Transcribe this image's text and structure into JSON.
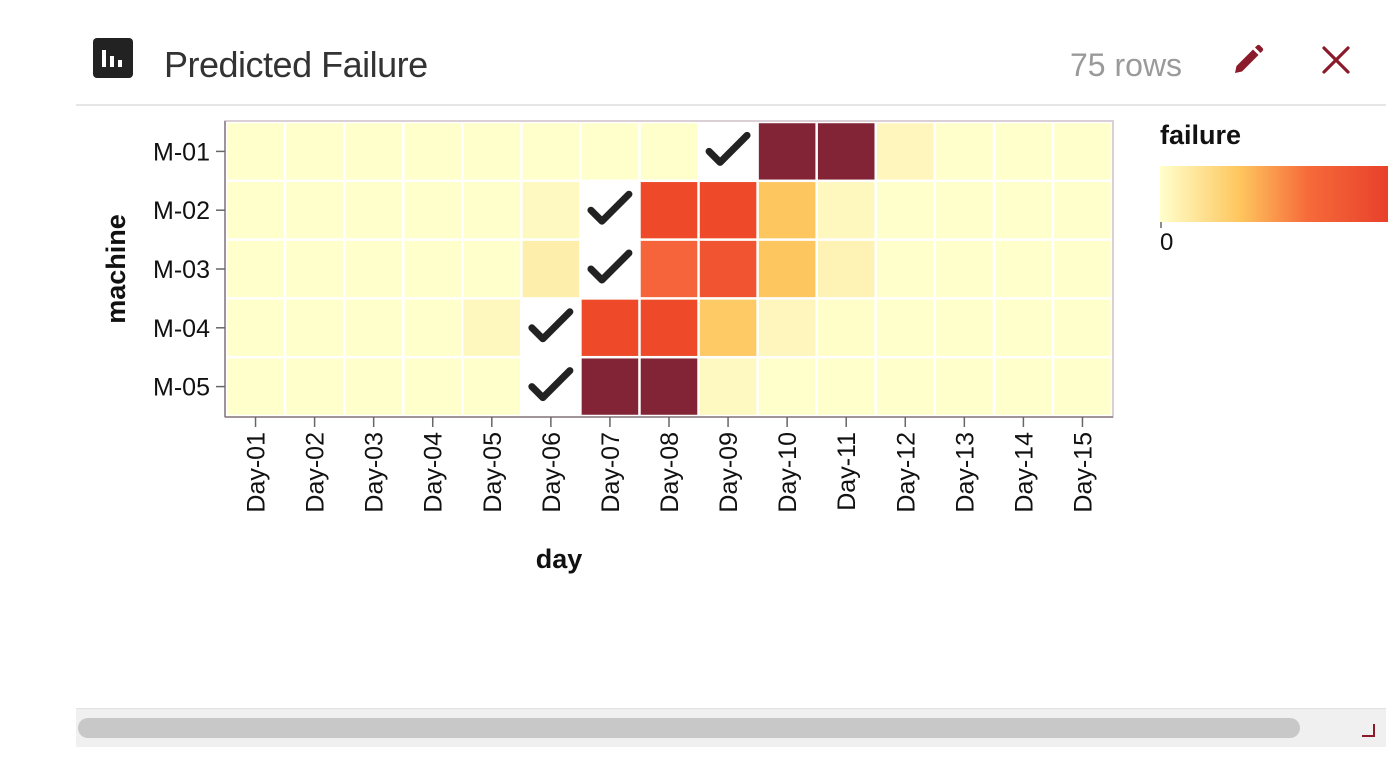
{
  "header": {
    "title": "Predicted Failure",
    "row_count": "75 rows",
    "chart_icon": "bar-chart-icon",
    "edit_icon": "pencil-icon",
    "close_icon": "close-icon"
  },
  "colors": {
    "accent": "#8b1a2b",
    "low": "#ffffcc",
    "mid": "#fec65e",
    "high": "#f04e2a",
    "max": "#822436"
  },
  "chart_data": {
    "type": "heatmap",
    "title": "",
    "xlabel": "day",
    "ylabel": "machine",
    "x": [
      "Day-01",
      "Day-02",
      "Day-03",
      "Day-04",
      "Day-05",
      "Day-06",
      "Day-07",
      "Day-08",
      "Day-09",
      "Day-10",
      "Day-11",
      "Day-12",
      "Day-13",
      "Day-14",
      "Day-15"
    ],
    "y": [
      "M-01",
      "M-02",
      "M-03",
      "M-04",
      "M-05"
    ],
    "values": [
      [
        0.0,
        0.0,
        0.0,
        0.0,
        0.0,
        0.0,
        0.0,
        0.0,
        null,
        1.0,
        1.0,
        0.06,
        0.0,
        0.0,
        0.0
      ],
      [
        0.0,
        0.0,
        0.0,
        0.0,
        0.0,
        0.04,
        null,
        0.82,
        0.82,
        0.3,
        0.05,
        0.0,
        0.0,
        0.0,
        0.0
      ],
      [
        0.0,
        0.0,
        0.0,
        0.0,
        0.0,
        0.1,
        null,
        0.72,
        0.78,
        0.3,
        0.08,
        0.0,
        0.0,
        0.0,
        0.0
      ],
      [
        0.0,
        0.0,
        0.0,
        0.0,
        0.05,
        null,
        0.82,
        0.82,
        0.28,
        0.06,
        0.01,
        0.0,
        0.0,
        0.0,
        0.0
      ],
      [
        0.0,
        0.0,
        0.0,
        0.0,
        0.0,
        null,
        1.0,
        1.0,
        0.04,
        0.0,
        0.0,
        0.0,
        0.0,
        0.0,
        0.0
      ]
    ],
    "markers": [
      {
        "machine": "M-01",
        "day": "Day-09",
        "symbol": "check-icon"
      },
      {
        "machine": "M-02",
        "day": "Day-07",
        "symbol": "check-icon"
      },
      {
        "machine": "M-03",
        "day": "Day-07",
        "symbol": "check-icon"
      },
      {
        "machine": "M-04",
        "day": "Day-06",
        "symbol": "check-icon"
      },
      {
        "machine": "M-05",
        "day": "Day-06",
        "symbol": "check-icon"
      }
    ],
    "legend": {
      "title": "failure",
      "min_label": "0",
      "placement": "right"
    },
    "grid": false
  }
}
